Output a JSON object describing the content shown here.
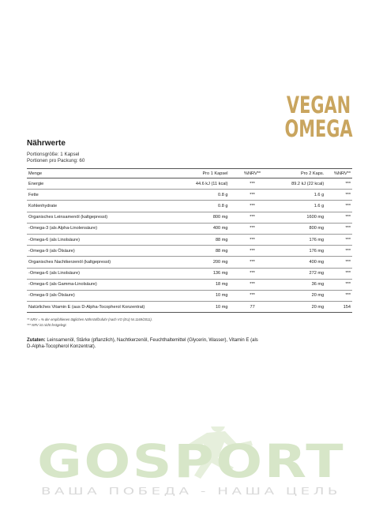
{
  "brand": {
    "line1": "VEGAN",
    "line2": "OMEGA"
  },
  "label": {
    "title": "Nährwerte",
    "serving_size": "Portionsgröße: 1 Kapsel",
    "servings_per_pack": "Portionen pro Packung: 60",
    "headers": {
      "name": "Menge",
      "per1": "Pro 1 Kapsel",
      "nrv1": "%NRV**",
      "per2": "Pro 2 Kaps.",
      "nrv2": "%NRV**"
    },
    "rows": [
      {
        "name": "Energie",
        "v1": "44.6 kJ (11 kcal)",
        "n1": "***",
        "v2": "89.2 kJ (22 kcal)",
        "n2": "***"
      },
      {
        "name": "Fette",
        "v1": "0.8 g",
        "n1": "***",
        "v2": "1.6 g",
        "n2": "***"
      },
      {
        "name": "Kohlenhydrate",
        "v1": "0.8 g",
        "n1": "***",
        "v2": "1.6 g",
        "n2": "***"
      },
      {
        "name": "Organisches Leinsamenöl (kaltgepresst)",
        "v1": "800 mg",
        "n1": "***",
        "v2": "1600 mg",
        "n2": "***"
      },
      {
        "name": "-Omega-3 (als Alpha-Linolensäure)",
        "v1": "400 mg",
        "n1": "***",
        "v2": "800 mg",
        "n2": "***"
      },
      {
        "name": "-Omega-6 (als Linolsäure)",
        "v1": "88 mg",
        "n1": "***",
        "v2": "176 mg",
        "n2": "***"
      },
      {
        "name": "-Omega-9 (als Ölsäure)",
        "v1": "88 mg",
        "n1": "***",
        "v2": "176 mg",
        "n2": "***"
      },
      {
        "name": "Organisches Nachtkerzenöl (kaltgepresst)",
        "v1": "200 mg",
        "n1": "***",
        "v2": "400 mg",
        "n2": "***"
      },
      {
        "name": "-Omega-6 (als Linolsäure)",
        "v1": "136 mg",
        "n1": "***",
        "v2": "272 mg",
        "n2": "***"
      },
      {
        "name": "-Omega-6 (als Gamma-Linolsäure)",
        "v1": "18 mg",
        "n1": "***",
        "v2": "36 mg",
        "n2": "***"
      },
      {
        "name": "-Omega-9 (als Ölsäure)",
        "v1": "10 mg",
        "n1": "***",
        "v2": "20 mg",
        "n2": "***"
      },
      {
        "name": "Natürliches Vitamin E (aus D-Alpha-Tocopherol Konzentrat)",
        "v1": "10 mg",
        "n1": "77",
        "v2": "20 mg",
        "n2": "154"
      }
    ],
    "footnote1": "** NRV = % der empfohlenen täglichen Nährstoffzufuhr (nach VO (EU) Nr.1169/2011).",
    "footnote2": "*** NRV ist nicht festgelegt.",
    "ingredients_label": "Zutaten:",
    "ingredients_text": " Leinsamenöl, Stärke (pflanzlich), Nachtkerzenöl, Feuchthaltemittel (Glycerin, Wasser), Vitamin E (als D-Alpha-Tocopherol Konzentrat)."
  },
  "watermark": {
    "logo": "GOSPORT",
    "slogan": "ВАША ПОБЕДА - НАША ЦЕЛЬ"
  },
  "colors": {
    "brand_gold": "#c9a55f",
    "watermark_green": "#d7e6c8",
    "watermark_grey": "#e2e2e2"
  }
}
